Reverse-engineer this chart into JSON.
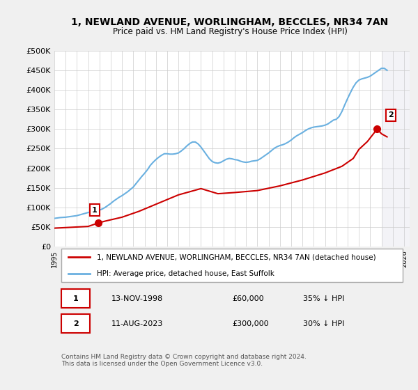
{
  "title": "1, NEWLAND AVENUE, WORLINGHAM, BECCLES, NR34 7AN",
  "subtitle": "Price paid vs. HM Land Registry's House Price Index (HPI)",
  "ylabel_ticks": [
    "£0",
    "£50K",
    "£100K",
    "£150K",
    "£200K",
    "£250K",
    "£300K",
    "£350K",
    "£400K",
    "£450K",
    "£500K"
  ],
  "ytick_values": [
    0,
    50000,
    100000,
    150000,
    200000,
    250000,
    300000,
    350000,
    400000,
    450000,
    500000
  ],
  "ylim": [
    0,
    500000
  ],
  "xlim_start": 1995.0,
  "xlim_end": 2026.5,
  "xticks": [
    1995,
    1996,
    1997,
    1998,
    1999,
    2000,
    2001,
    2002,
    2003,
    2004,
    2005,
    2006,
    2007,
    2008,
    2009,
    2010,
    2011,
    2012,
    2013,
    2014,
    2015,
    2016,
    2017,
    2018,
    2019,
    2020,
    2021,
    2022,
    2023,
    2024,
    2025,
    2026
  ],
  "hpi_color": "#6ab0e0",
  "sale_color": "#cc0000",
  "marker_color": "#cc0000",
  "annotation1_label": "1",
  "annotation2_label": "2",
  "legend_sale": "1, NEWLAND AVENUE, WORLINGHAM, BECCLES, NR34 7AN (detached house)",
  "legend_hpi": "HPI: Average price, detached house, East Suffolk",
  "table_row1_num": "1",
  "table_row1_date": "13-NOV-1998",
  "table_row1_price": "£60,000",
  "table_row1_hpi": "35% ↓ HPI",
  "table_row2_num": "2",
  "table_row2_date": "11-AUG-2023",
  "table_row2_price": "£300,000",
  "table_row2_hpi": "30% ↓ HPI",
  "footer": "Contains HM Land Registry data © Crown copyright and database right 2024.\nThis data is licensed under the Open Government Licence v3.0.",
  "bg_color": "#f0f0f0",
  "plot_bg_color": "#ffffff",
  "sale1_x": 1998.87,
  "sale1_y": 60000,
  "sale2_x": 2023.62,
  "sale2_y": 300000,
  "hpi_x": [
    1995.0,
    1995.25,
    1995.5,
    1995.75,
    1996.0,
    1996.25,
    1996.5,
    1996.75,
    1997.0,
    1997.25,
    1997.5,
    1997.75,
    1998.0,
    1998.25,
    1998.5,
    1998.75,
    1999.0,
    1999.25,
    1999.5,
    1999.75,
    2000.0,
    2000.25,
    2000.5,
    2000.75,
    2001.0,
    2001.25,
    2001.5,
    2001.75,
    2002.0,
    2002.25,
    2002.5,
    2002.75,
    2003.0,
    2003.25,
    2003.5,
    2003.75,
    2004.0,
    2004.25,
    2004.5,
    2004.75,
    2005.0,
    2005.25,
    2005.5,
    2005.75,
    2006.0,
    2006.25,
    2006.5,
    2006.75,
    2007.0,
    2007.25,
    2007.5,
    2007.75,
    2008.0,
    2008.25,
    2008.5,
    2008.75,
    2009.0,
    2009.25,
    2009.5,
    2009.75,
    2010.0,
    2010.25,
    2010.5,
    2010.75,
    2011.0,
    2011.25,
    2011.5,
    2011.75,
    2012.0,
    2012.25,
    2012.5,
    2012.75,
    2013.0,
    2013.25,
    2013.5,
    2013.75,
    2014.0,
    2014.25,
    2014.5,
    2014.75,
    2015.0,
    2015.25,
    2015.5,
    2015.75,
    2016.0,
    2016.25,
    2016.5,
    2016.75,
    2017.0,
    2017.25,
    2017.5,
    2017.75,
    2018.0,
    2018.25,
    2018.5,
    2018.75,
    2019.0,
    2019.25,
    2019.5,
    2019.75,
    2020.0,
    2020.25,
    2020.5,
    2020.75,
    2021.0,
    2021.25,
    2021.5,
    2021.75,
    2022.0,
    2022.25,
    2022.5,
    2022.75,
    2023.0,
    2023.25,
    2023.5,
    2023.75,
    2024.0,
    2024.25,
    2024.5
  ],
  "hpi_y": [
    72000,
    73000,
    74000,
    74500,
    75000,
    76000,
    77000,
    78000,
    79000,
    81000,
    83000,
    85000,
    87000,
    89000,
    91000,
    92000,
    93000,
    96000,
    100000,
    105000,
    110000,
    116000,
    121000,
    126000,
    130000,
    135000,
    140000,
    146000,
    152000,
    161000,
    170000,
    179000,
    187000,
    196000,
    207000,
    215000,
    222000,
    228000,
    233000,
    237000,
    237000,
    236000,
    236000,
    237000,
    239000,
    244000,
    250000,
    257000,
    263000,
    267000,
    267000,
    262000,
    254000,
    244000,
    234000,
    224000,
    217000,
    214000,
    213000,
    215000,
    219000,
    223000,
    225000,
    224000,
    222000,
    221000,
    218000,
    216000,
    215000,
    216000,
    218000,
    219000,
    220000,
    224000,
    229000,
    234000,
    239000,
    245000,
    251000,
    255000,
    258000,
    260000,
    263000,
    267000,
    272000,
    278000,
    283000,
    287000,
    291000,
    296000,
    300000,
    303000,
    305000,
    306000,
    307000,
    308000,
    310000,
    313000,
    318000,
    323000,
    325000,
    332000,
    345000,
    362000,
    378000,
    393000,
    407000,
    418000,
    425000,
    428000,
    430000,
    432000,
    435000,
    440000,
    445000,
    450000,
    455000,
    455000,
    450000
  ],
  "sale_hpi_x": [
    1995.0,
    1996.0,
    1997.0,
    1998.0,
    1998.87,
    1999.5,
    2001.0,
    2002.5,
    2004.0,
    2006.0,
    2008.0,
    2009.5,
    2011.0,
    2013.0,
    2015.0,
    2017.0,
    2019.0,
    2020.5,
    2021.5,
    2022.0,
    2022.75,
    2023.62,
    2024.0,
    2024.5
  ],
  "sale_hpi_y": [
    47000,
    48500,
    50000,
    51500,
    60000,
    65000,
    75000,
    90000,
    108000,
    132000,
    148000,
    135000,
    138000,
    143000,
    155000,
    170000,
    188000,
    205000,
    225000,
    248000,
    268000,
    300000,
    288000,
    280000
  ]
}
